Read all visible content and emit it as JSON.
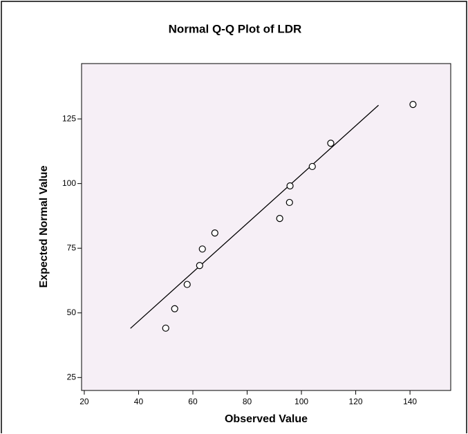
{
  "chart_data": {
    "type": "scatter",
    "title": "Normal Q-Q Plot of LDR",
    "x_label": "Observed Value",
    "y_label": "Expected Normal Value",
    "x": [
      50.0,
      53.3,
      57.9,
      62.5,
      63.5,
      68.1,
      92.0,
      95.6,
      95.8,
      104.0,
      110.8,
      141.1
    ],
    "values": [
      44.1,
      51.6,
      61.0,
      68.3,
      74.7,
      80.9,
      86.5,
      92.7,
      99.1,
      106.6,
      115.6,
      130.6
    ],
    "reference_line": {
      "x": [
        37.0,
        128.4
      ],
      "y": [
        44.0,
        130.3
      ]
    },
    "xlim": [
      19,
      155
    ],
    "ylim": [
      20,
      146.4
    ],
    "xticks": [
      20,
      40,
      60,
      80,
      100,
      120,
      140
    ],
    "yticks": [
      25,
      50,
      75,
      100,
      125
    ],
    "grid": false
  }
}
